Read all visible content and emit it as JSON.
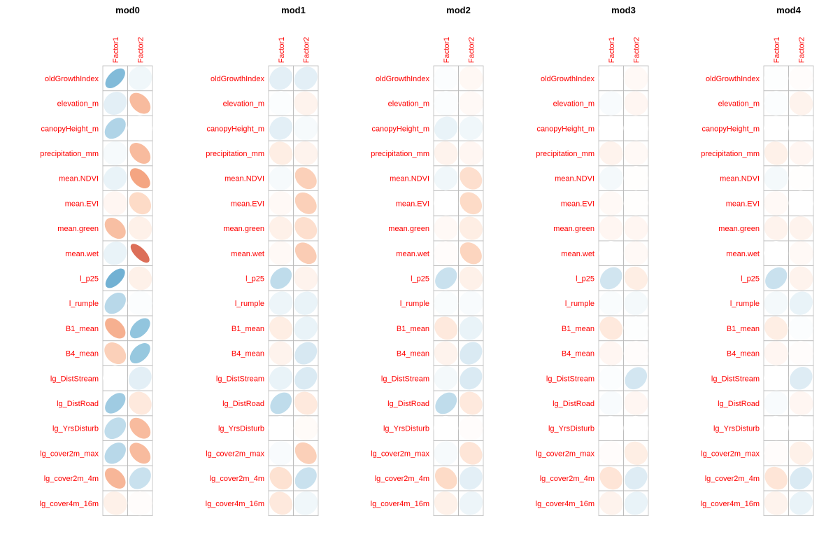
{
  "chart_data": [
    {
      "type": "heatmap",
      "title": "mod0",
      "columns": [
        "Factor1",
        "Factor2"
      ],
      "rows": [
        "oldGrowthIndex",
        "elevation_m",
        "canopyHeight_m",
        "precipitation_mm",
        "mean.NDVI",
        "mean.EVI",
        "mean.green",
        "mean.wet",
        "l_p25",
        "l_rumple",
        "B1_mean",
        "B4_mean",
        "lg_DistStream",
        "lg_DistRoad",
        "lg_YrsDisturb",
        "lg_cover2m_max",
        "lg_cover2m_4m",
        "lg_cover4m_16m"
      ],
      "values": [
        [
          0.55,
          0.08
        ],
        [
          0.15,
          -0.4
        ],
        [
          0.38,
          0.0
        ],
        [
          0.05,
          -0.4
        ],
        [
          0.12,
          -0.5
        ],
        [
          -0.06,
          -0.25
        ],
        [
          -0.38,
          -0.1
        ],
        [
          0.12,
          -0.7
        ],
        [
          0.6,
          -0.1
        ],
        [
          0.35,
          0.02
        ],
        [
          -0.45,
          0.5
        ],
        [
          -0.3,
          0.48
        ],
        [
          0.0,
          0.15
        ],
        [
          0.45,
          -0.15
        ],
        [
          0.32,
          -0.4
        ],
        [
          0.35,
          -0.4
        ],
        [
          -0.42,
          0.28
        ],
        [
          -0.1,
          -0.02
        ]
      ]
    },
    {
      "type": "heatmap",
      "title": "mod1",
      "columns": [
        "Factor1",
        "Factor2"
      ],
      "rows": [
        "oldGrowthIndex",
        "elevation_m",
        "canopyHeight_m",
        "precipitation_mm",
        "mean.NDVI",
        "mean.EVI",
        "mean.green",
        "mean.wet",
        "l_p25",
        "l_rumple",
        "B1_mean",
        "B4_mean",
        "lg_DistStream",
        "lg_DistRoad",
        "lg_YrsDisturb",
        "lg_cover2m_max",
        "lg_cover2m_4m",
        "lg_cover4m_16m"
      ],
      "values": [
        [
          0.15,
          0.15
        ],
        [
          0.02,
          -0.08
        ],
        [
          0.15,
          0.05
        ],
        [
          -0.12,
          -0.08
        ],
        [
          0.05,
          -0.3
        ],
        [
          -0.04,
          -0.3
        ],
        [
          -0.1,
          -0.22
        ],
        [
          -0.04,
          -0.32
        ],
        [
          0.32,
          -0.08
        ],
        [
          0.1,
          0.12
        ],
        [
          -0.12,
          0.12
        ],
        [
          -0.08,
          0.22
        ],
        [
          0.12,
          0.2
        ],
        [
          0.32,
          -0.15
        ],
        [
          0.0,
          -0.03
        ],
        [
          0.04,
          -0.3
        ],
        [
          -0.2,
          0.28
        ],
        [
          -0.15,
          0.08
        ]
      ]
    },
    {
      "type": "heatmap",
      "title": "mod2",
      "columns": [
        "Factor1",
        "Factor2"
      ],
      "rows": [
        "oldGrowthIndex",
        "elevation_m",
        "canopyHeight_m",
        "precipitation_mm",
        "mean.NDVI",
        "mean.EVI",
        "mean.green",
        "mean.wet",
        "l_p25",
        "l_rumple",
        "B1_mean",
        "B4_mean",
        "lg_DistStream",
        "lg_DistRoad",
        "lg_YrsDisturb",
        "lg_cover2m_max",
        "lg_cover2m_4m",
        "lg_cover4m_16m"
      ],
      "values": [
        [
          0.02,
          -0.05
        ],
        [
          0.02,
          -0.04
        ],
        [
          0.12,
          0.08
        ],
        [
          -0.08,
          -0.06
        ],
        [
          0.08,
          -0.22
        ],
        [
          0.0,
          -0.25
        ],
        [
          -0.04,
          -0.12
        ],
        [
          -0.02,
          -0.28
        ],
        [
          0.28,
          -0.1
        ],
        [
          0.03,
          0.04
        ],
        [
          -0.15,
          0.12
        ],
        [
          -0.08,
          0.2
        ],
        [
          0.06,
          0.2
        ],
        [
          0.32,
          -0.15
        ],
        [
          0.0,
          -0.02
        ],
        [
          0.05,
          -0.18
        ],
        [
          -0.25,
          0.15
        ],
        [
          -0.1,
          0.1
        ]
      ]
    },
    {
      "type": "heatmap",
      "title": "mod3",
      "columns": [
        "Factor1",
        "Factor2"
      ],
      "rows": [
        "oldGrowthIndex",
        "elevation_m",
        "canopyHeight_m",
        "precipitation_mm",
        "mean.NDVI",
        "mean.EVI",
        "mean.green",
        "mean.wet",
        "l_p25",
        "l_rumple",
        "B1_mean",
        "B4_mean",
        "lg_DistStream",
        "lg_DistRoad",
        "lg_YrsDisturb",
        "lg_cover2m_max",
        "lg_cover2m_4m",
        "lg_cover4m_16m"
      ],
      "values": [
        [
          0.0,
          -0.04
        ],
        [
          0.04,
          -0.06
        ],
        [
          0.0,
          0.0
        ],
        [
          -0.08,
          -0.04
        ],
        [
          0.06,
          -0.01
        ],
        [
          -0.04,
          -0.01
        ],
        [
          -0.06,
          -0.06
        ],
        [
          0.0,
          -0.04
        ],
        [
          0.25,
          -0.12
        ],
        [
          0.03,
          0.06
        ],
        [
          -0.15,
          0.01
        ],
        [
          -0.06,
          -0.02
        ],
        [
          0.02,
          0.24
        ],
        [
          0.04,
          -0.06
        ],
        [
          0.0,
          0.0
        ],
        [
          -0.02,
          -0.12
        ],
        [
          -0.18,
          0.18
        ],
        [
          -0.08,
          0.12
        ]
      ]
    },
    {
      "type": "heatmap",
      "title": "mod4",
      "columns": [
        "Factor1",
        "Factor2"
      ],
      "rows": [
        "oldGrowthIndex",
        "elevation_m",
        "canopyHeight_m",
        "precipitation_mm",
        "mean.NDVI",
        "mean.EVI",
        "mean.green",
        "mean.wet",
        "l_p25",
        "l_rumple",
        "B1_mean",
        "B4_mean",
        "lg_DistStream",
        "lg_DistRoad",
        "lg_YrsDisturb",
        "lg_cover2m_max",
        "lg_cover2m_4m",
        "lg_cover4m_16m"
      ],
      "values": [
        [
          0.01,
          -0.02
        ],
        [
          0.02,
          -0.08
        ],
        [
          0.0,
          0.0
        ],
        [
          -0.1,
          -0.06
        ],
        [
          0.06,
          -0.01
        ],
        [
          -0.04,
          0.0
        ],
        [
          -0.08,
          -0.08
        ],
        [
          0.0,
          -0.04
        ],
        [
          0.28,
          -0.08
        ],
        [
          0.06,
          0.12
        ],
        [
          -0.12,
          0.02
        ],
        [
          -0.06,
          -0.02
        ],
        [
          0.0,
          0.18
        ],
        [
          0.04,
          -0.06
        ],
        [
          0.0,
          0.0
        ],
        [
          -0.02,
          -0.1
        ],
        [
          -0.18,
          0.2
        ],
        [
          -0.08,
          0.12
        ]
      ]
    }
  ],
  "colors": {
    "label": "#ff0000",
    "grid": "#bbbbbb",
    "positive": "#2166ac",
    "negative": "#b2182b",
    "neutral": "#ffffff"
  }
}
